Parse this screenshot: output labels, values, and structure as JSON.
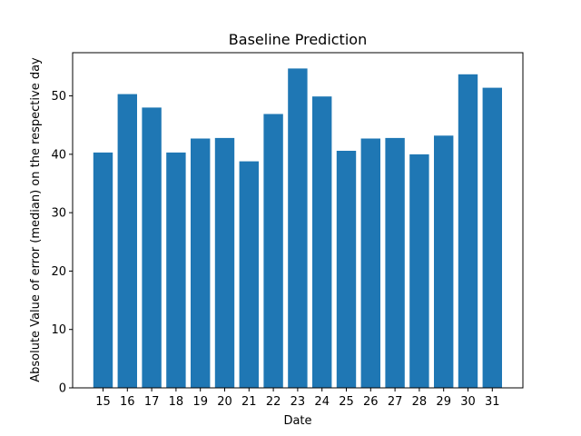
{
  "chart_data": {
    "type": "bar",
    "title": "Baseline Prediction",
    "xlabel": "Date",
    "ylabel": "Absolute Value of error (median) on the respective day",
    "categories": [
      "15",
      "16",
      "17",
      "18",
      "19",
      "20",
      "21",
      "22",
      "23",
      "24",
      "25",
      "26",
      "27",
      "28",
      "29",
      "30",
      "31"
    ],
    "values": [
      40.3,
      50.3,
      48.0,
      40.3,
      42.7,
      42.8,
      38.8,
      46.9,
      54.7,
      49.9,
      40.6,
      42.7,
      42.8,
      40.0,
      43.2,
      53.7,
      51.4
    ],
    "ylim": [
      0,
      57.4
    ],
    "yticks": [
      0,
      10,
      20,
      30,
      40,
      50
    ],
    "bar_color": "#1f77b4",
    "grid": false,
    "legend": "none"
  }
}
